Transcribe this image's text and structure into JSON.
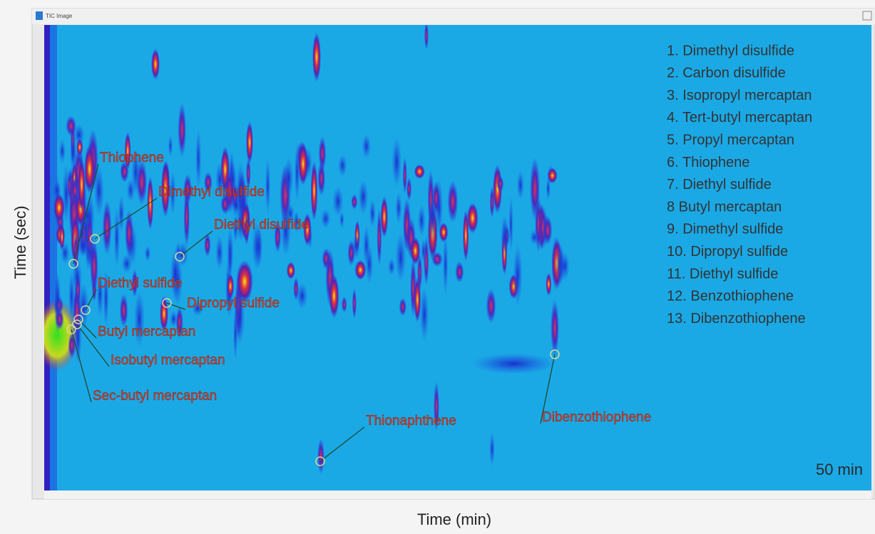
{
  "window": {
    "title": "TIC Image"
  },
  "axes": {
    "x_label": "Time (min)",
    "y_label": "Time (sec)"
  },
  "annotations": [
    "Thiophene",
    "Dimethyl disulfide",
    "Diethyl disulfide",
    "Diethyl sulfide",
    "Dipropyl sulfide",
    "Butyl mercaptan",
    "Isobutyl mercaptan",
    "Sec-butyl mercaptan",
    "Thionaphthene",
    "Dibenzothiophene"
  ],
  "compound_list": [
    "1. Dimethyl disulfide",
    "2. Carbon disulfide",
    "3. Isopropyl mercaptan",
    "4. Tert-butyl mercaptan",
    "5. Propyl mercaptan",
    "6. Thiophene",
    "7. Diethyl sulfide",
    "8  Butyl mercaptan",
    "9. Dimethyl sulfide",
    "10. Dipropyl sulfide",
    "11. Diethyl sulfide",
    "12. Benzothiophene",
    "13. Dibenzothiophene"
  ],
  "duration_label": "50 min"
}
